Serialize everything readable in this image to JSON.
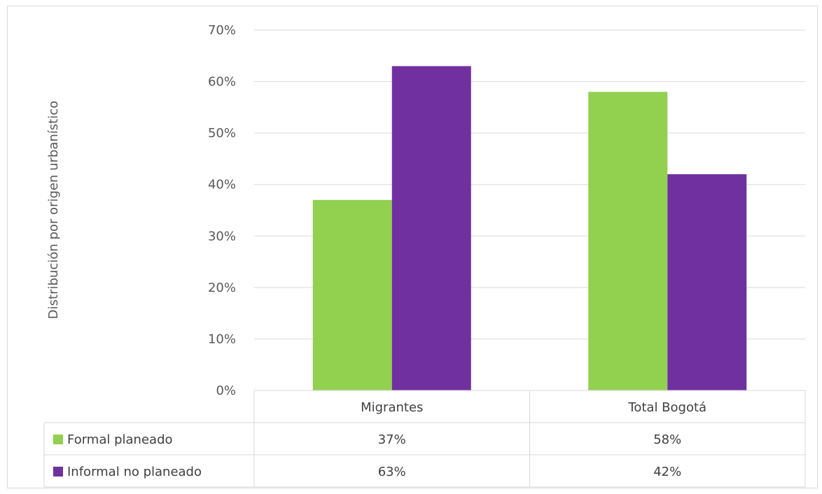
{
  "chart_data": {
    "type": "bar",
    "ylabel": "Distribución por origen urbanístico",
    "xlabel": "",
    "ylim": [
      0,
      0.7
    ],
    "ytick_labels": [
      "0%",
      "10%",
      "20%",
      "30%",
      "40%",
      "50%",
      "60%",
      "70%"
    ],
    "categories": [
      "Migrantes",
      "Total Bogotá"
    ],
    "series": [
      {
        "name": "Formal planeado",
        "color": "#92d050",
        "values": [
          0.37,
          0.58
        ],
        "labels": [
          "37%",
          "58%"
        ]
      },
      {
        "name": "Informal no planeado",
        "color": "#7030a0",
        "values": [
          0.63,
          0.42
        ],
        "labels": [
          "63%",
          "42%"
        ]
      }
    ],
    "grid": true,
    "legend": "data-table"
  }
}
